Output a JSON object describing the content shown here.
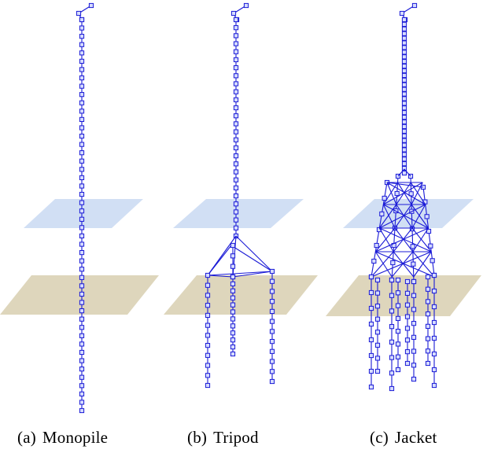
{
  "figure": {
    "colors": {
      "member": "#1a1ad6",
      "node_fill": "#d6dcff",
      "water_plane": "#c9d9f2",
      "seabed_plane": "#d8cfb0",
      "background": "#ffffff"
    },
    "panels": [
      {
        "key": "monopile",
        "tag": "(a)",
        "label": "Monopile"
      },
      {
        "key": "tripod",
        "tag": "(b)",
        "label": "Tripod"
      },
      {
        "key": "jacket",
        "tag": "(c)",
        "label": "Jacket"
      }
    ]
  }
}
